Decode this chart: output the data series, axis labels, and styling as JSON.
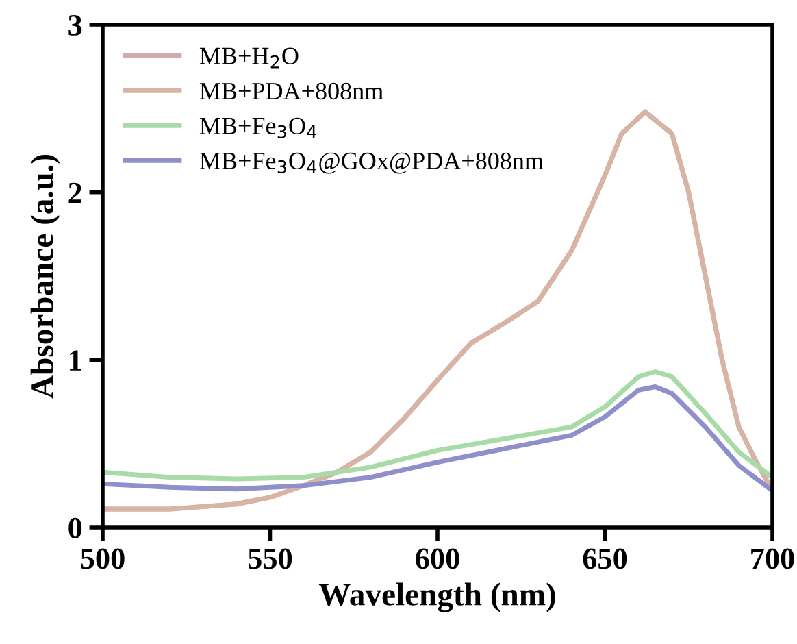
{
  "chart_data": {
    "type": "line",
    "xlabel": "Wavelength (nm)",
    "ylabel": "Absorbance (a.u.)",
    "xlim": [
      500,
      700
    ],
    "xticks": [
      500,
      550,
      600,
      650,
      700
    ],
    "ylim": [
      0,
      3
    ],
    "yticks": [
      0,
      1,
      2,
      3
    ],
    "grid": false,
    "legend": "top left",
    "marker": "none",
    "line_style": "solid",
    "x": [
      500,
      520,
      540,
      550,
      560,
      570,
      580,
      590,
      600,
      610,
      620,
      630,
      640,
      650,
      655,
      662,
      670,
      675,
      680,
      685,
      690,
      695,
      700
    ],
    "series": [
      {
        "name": "MB+H$_{2}$O",
        "color": "#d1acab",
        "values": [
          0.11,
          0.11,
          0.14,
          0.18,
          0.25,
          0.33,
          0.45,
          0.65,
          0.88,
          1.1,
          1.22,
          1.35,
          1.65,
          2.1,
          2.35,
          2.48,
          2.35,
          2.0,
          1.5,
          1.0,
          0.6,
          0.4,
          0.22
        ]
      },
      {
        "name": "MB+PDA+808nm",
        "color": "#d8b4a4",
        "values": [
          0.11,
          0.11,
          0.14,
          0.18,
          0.25,
          0.33,
          0.45,
          0.65,
          0.88,
          1.1,
          1.22,
          1.35,
          1.65,
          2.1,
          2.35,
          2.48,
          2.35,
          2.0,
          1.5,
          1.0,
          0.6,
          0.4,
          0.22
        ]
      },
      {
        "name": "MB+Fe$_{3}$O$_{4}$",
        "color": "#a8dba8",
        "x": [
          500,
          520,
          540,
          560,
          580,
          600,
          620,
          640,
          650,
          660,
          665,
          670,
          680,
          690,
          700
        ],
        "values": [
          0.33,
          0.3,
          0.29,
          0.3,
          0.36,
          0.46,
          0.53,
          0.6,
          0.72,
          0.9,
          0.93,
          0.9,
          0.68,
          0.45,
          0.3
        ]
      },
      {
        "name": "MB+Fe$_{3}$O$_{4}$@GOx@PDA+808nm",
        "color": "#8f8fcc",
        "x": [
          500,
          520,
          540,
          560,
          580,
          600,
          620,
          640,
          650,
          660,
          665,
          670,
          680,
          690,
          700
        ],
        "values": [
          0.26,
          0.24,
          0.23,
          0.25,
          0.3,
          0.39,
          0.47,
          0.55,
          0.66,
          0.82,
          0.84,
          0.8,
          0.6,
          0.37,
          0.22
        ]
      }
    ]
  }
}
